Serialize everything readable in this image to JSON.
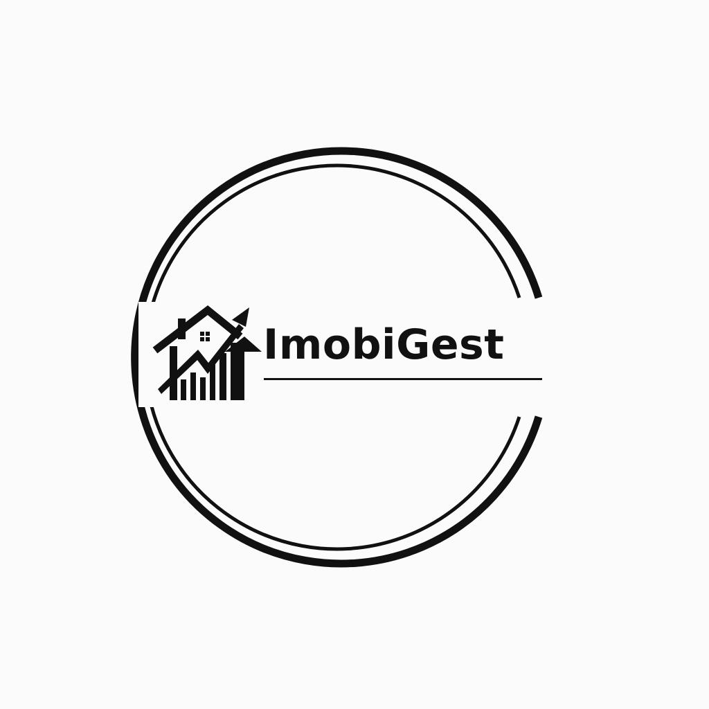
{
  "logo": {
    "brand_name": "ImobiGest",
    "emblem_icon": "house-with-rising-chart-arrow-icon",
    "frame": "double-ring-with-gap",
    "colors": {
      "ink": "#111111",
      "background": "#fbfbfb"
    }
  }
}
